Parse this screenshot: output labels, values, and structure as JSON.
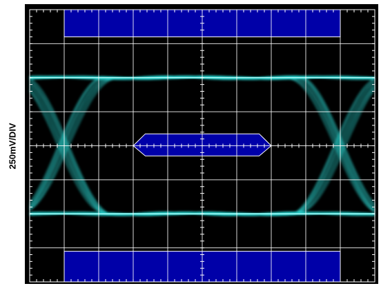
{
  "chart_data": {
    "type": "eye-diagram",
    "ylabel": "250mV/DIV",
    "divisions": {
      "horizontal": 10,
      "vertical": 8
    },
    "minor_ticks_per_division": 5,
    "grid": true,
    "colors": {
      "background": "#000000",
      "grid": "#ffffff",
      "trace": "#2ee6e0",
      "mask": "#0000a8",
      "frame": "#000000"
    },
    "levels_div": {
      "high": 2.0,
      "low": -2.0
    },
    "trace_count": 9,
    "unit_interval_div": 8,
    "crossings_div": [
      1,
      9
    ],
    "mask": {
      "center_hexagon": [
        {
          "t": 3.0,
          "v": 0.0
        },
        {
          "t": 3.35,
          "v": 0.35
        },
        {
          "t": 6.65,
          "v": 0.35
        },
        {
          "t": 7.0,
          "v": 0.0
        },
        {
          "t": 6.65,
          "v": -0.3
        },
        {
          "t": 3.35,
          "v": -0.3
        }
      ],
      "top_region": {
        "t_start": 1,
        "t_end": 9,
        "v_from": 3.2,
        "v_to": 4.0
      },
      "bottom_region": {
        "t_start": 1,
        "t_end": 9,
        "v_from": -3.1,
        "v_to": -4.0
      }
    }
  }
}
